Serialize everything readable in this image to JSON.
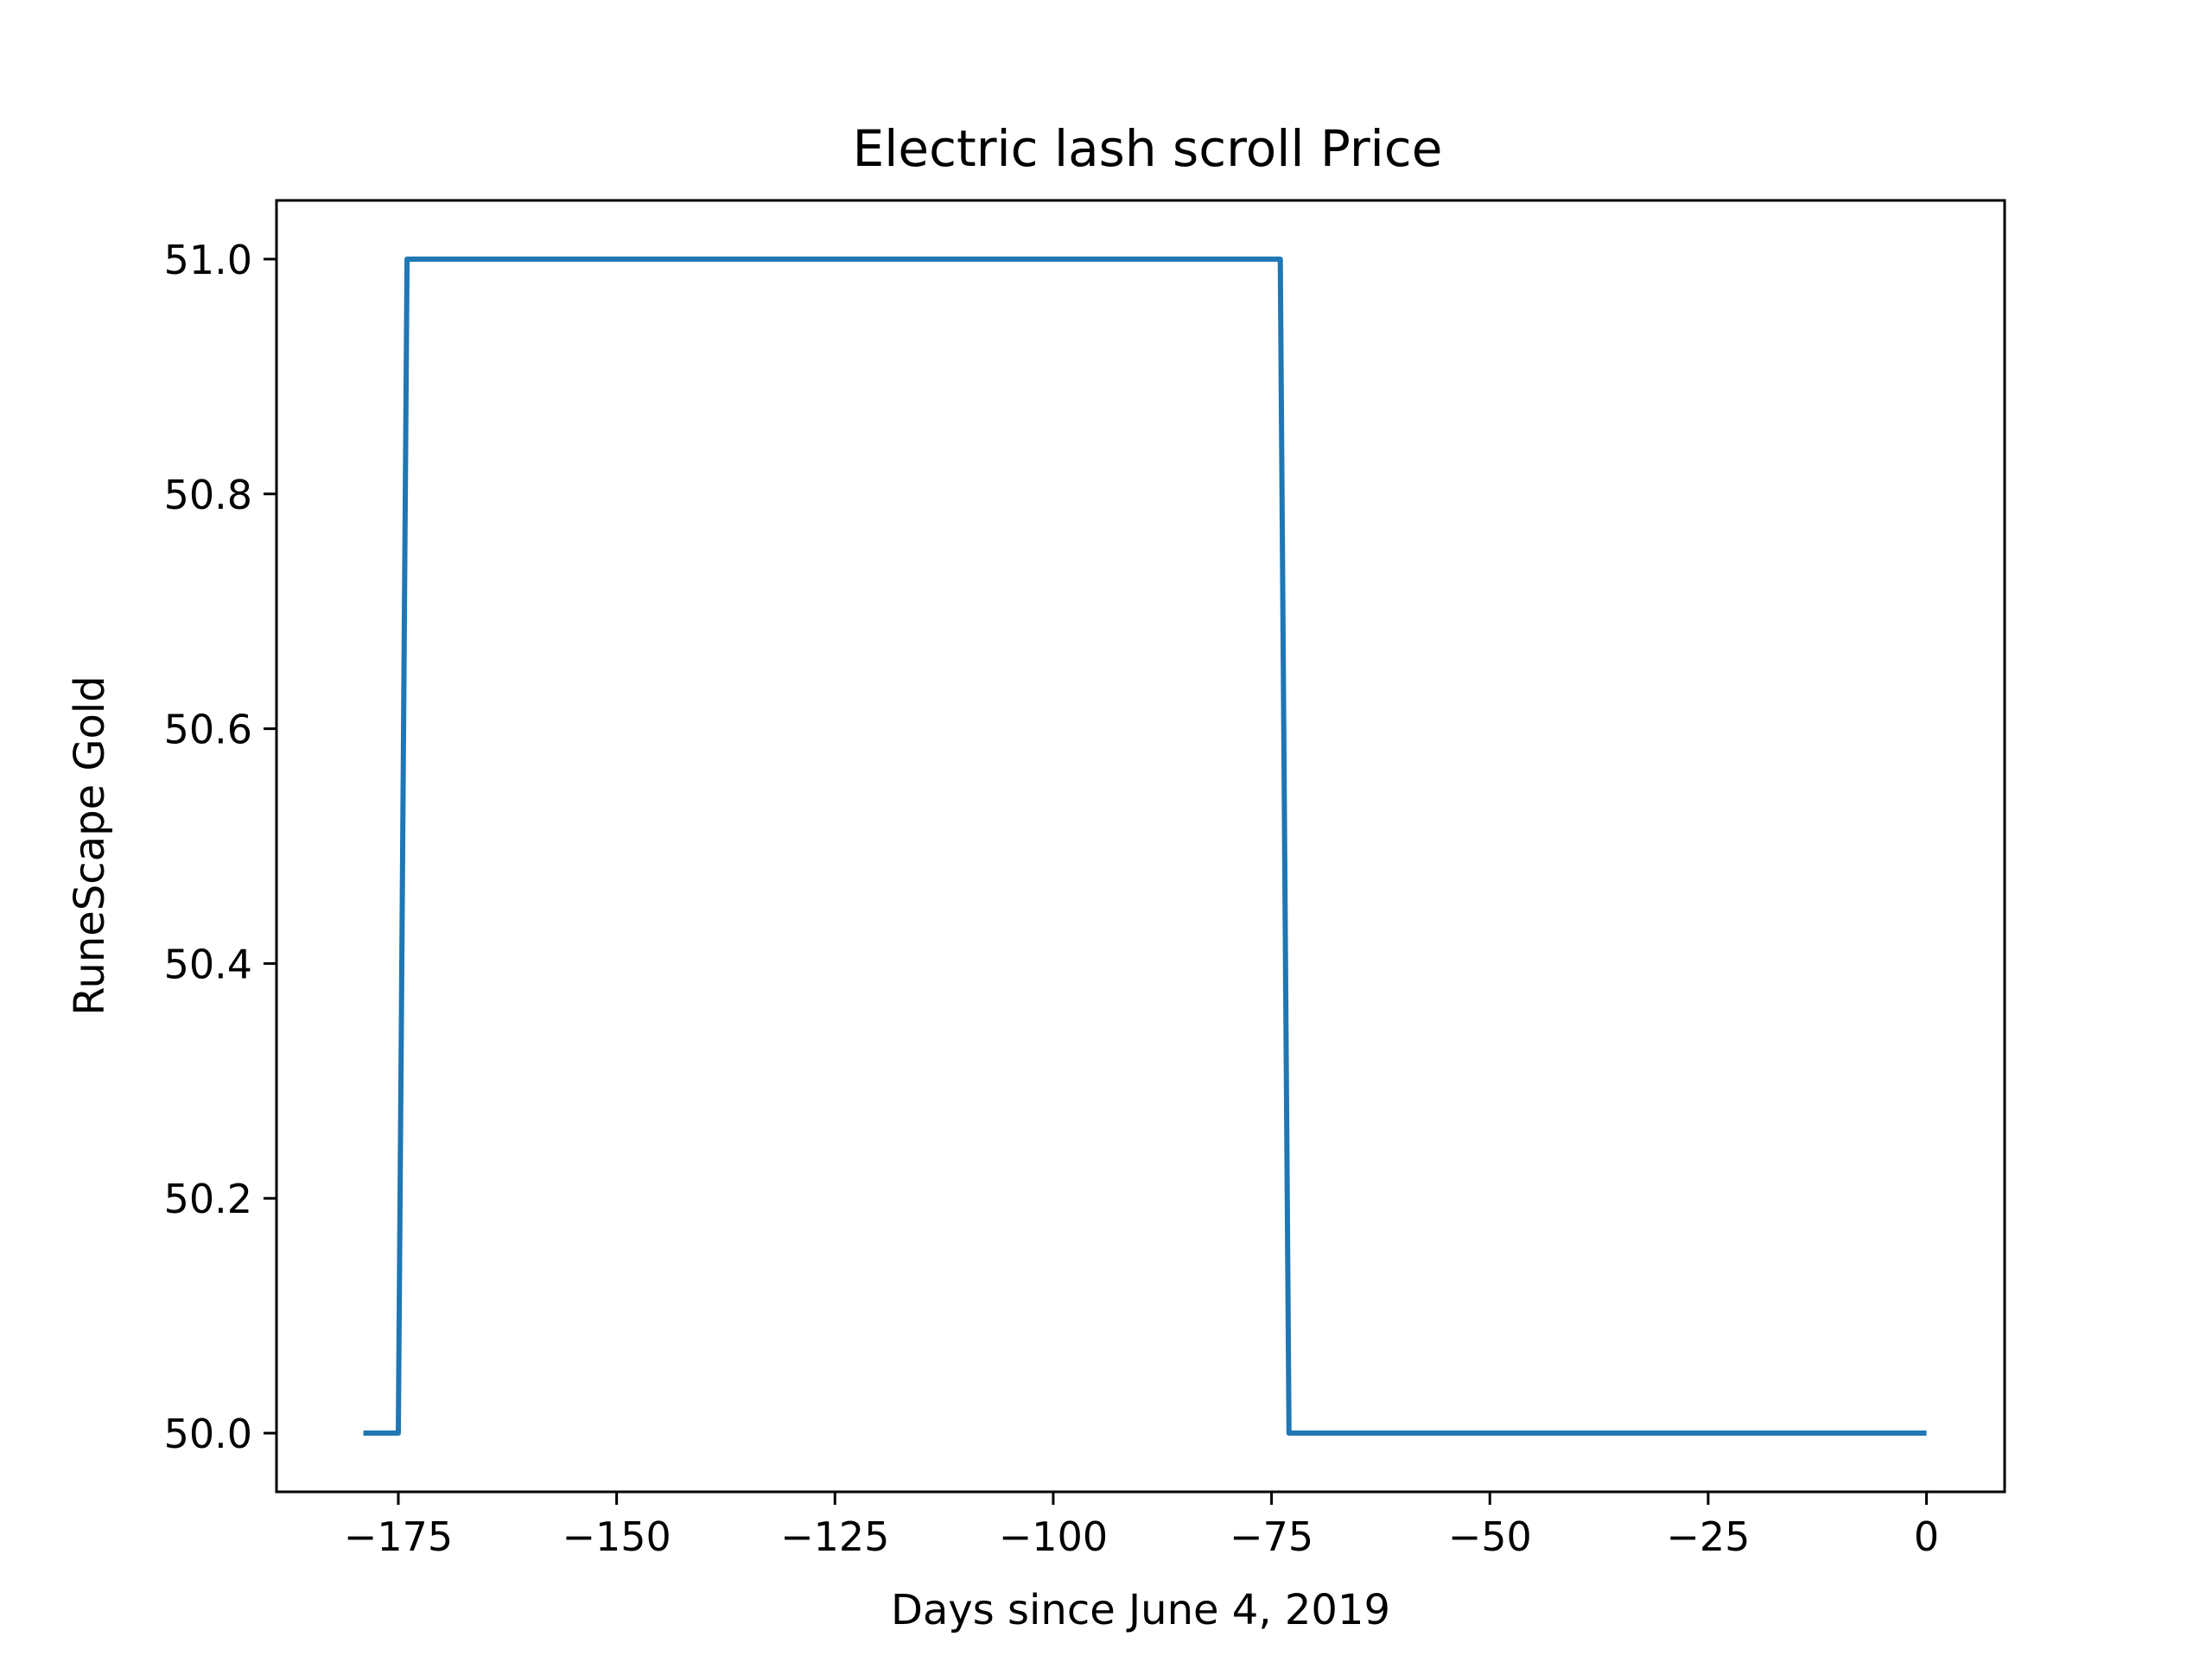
{
  "chart_data": {
    "type": "line",
    "title": "Electric lash scroll Price",
    "xlabel": "Days since June 4, 2019",
    "ylabel": "RuneScape Gold",
    "xlim": [
      -188.95,
      8.95
    ],
    "ylim": [
      49.95,
      51.05
    ],
    "xticks": [
      -175,
      -150,
      -125,
      -100,
      -75,
      -50,
      -25,
      0
    ],
    "xtick_labels": [
      "−175",
      "−150",
      "−125",
      "−100",
      "−75",
      "−50",
      "−25",
      "0"
    ],
    "yticks": [
      50.0,
      50.2,
      50.4,
      50.6,
      50.8,
      51.0
    ],
    "ytick_labels": [
      "50.0",
      "50.2",
      "50.4",
      "50.6",
      "50.8",
      "51.0"
    ],
    "grid": false,
    "series": [
      {
        "color": "#1f77b4",
        "x": [
          -179,
          -175,
          -174,
          -74,
          -73,
          0
        ],
        "y": [
          50,
          50,
          51,
          51,
          50,
          50
        ]
      }
    ]
  }
}
